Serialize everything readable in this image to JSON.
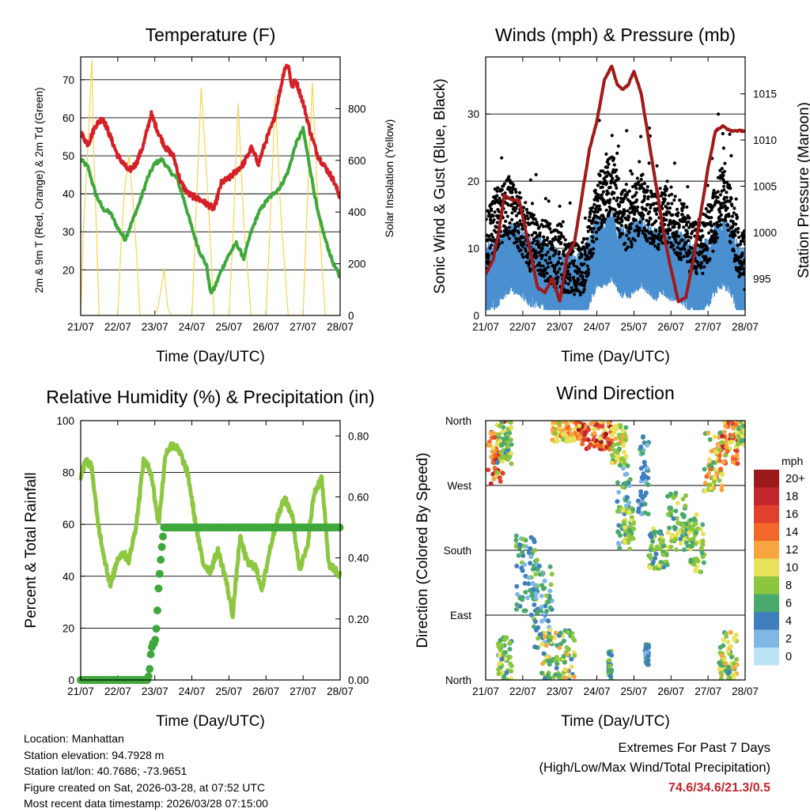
{
  "chart_data": [
    {
      "id": "temp",
      "type": "line",
      "title": "Temperature (F)",
      "xlabel": "Time (Day/UTC)",
      "ylabel": "2m & 9m T (Red, Orange) & 2m Td (Green)",
      "ylabel_right": "Solar Insolation (Yellow)",
      "x_ticks": [
        "21/07",
        "22/07",
        "23/07",
        "24/07",
        "25/07",
        "26/07",
        "27/07",
        "28/07"
      ],
      "xlim": [
        0,
        7
      ],
      "ylim": [
        8,
        76
      ],
      "yticks": [
        20,
        30,
        40,
        50,
        60,
        70
      ],
      "ylim_right": [
        0,
        1000
      ],
      "yticks_right": [
        0,
        200,
        400,
        600,
        800
      ],
      "grid": true,
      "series": [
        {
          "name": "2m T",
          "color": "#d62027",
          "axis": "left",
          "x": [
            0,
            0.2,
            0.4,
            0.6,
            0.8,
            1.0,
            1.3,
            1.5,
            1.7,
            1.9,
            2.1,
            2.3,
            2.5,
            2.7,
            2.9,
            3.1,
            3.3,
            3.6,
            3.8,
            4.0,
            4.2,
            4.4,
            4.6,
            4.8,
            5.0,
            5.2,
            5.4,
            5.5,
            5.6,
            5.7,
            5.8,
            6.0,
            6.2,
            6.4,
            6.6,
            6.8,
            7.0
          ],
          "y": [
            56,
            53,
            58,
            60,
            55,
            50,
            46,
            48,
            53,
            61,
            56,
            52,
            50,
            43,
            40,
            39,
            38,
            36,
            43,
            44,
            46,
            48,
            52,
            48,
            54,
            59,
            68,
            73,
            74,
            68,
            70,
            64,
            56,
            50,
            47,
            44,
            39
          ]
        },
        {
          "name": "2m Td",
          "color": "#3ea83c",
          "axis": "left",
          "x": [
            0,
            0.2,
            0.4,
            0.6,
            0.8,
            1.0,
            1.2,
            1.4,
            1.6,
            1.8,
            2.0,
            2.2,
            2.4,
            2.6,
            2.8,
            3.0,
            3.2,
            3.4,
            3.5,
            3.6,
            3.8,
            4.0,
            4.2,
            4.4,
            4.6,
            4.8,
            5.0,
            5.2,
            5.4,
            5.6,
            5.8,
            6.0,
            6.2,
            6.4,
            6.6,
            6.8,
            7.0
          ],
          "y": [
            49,
            47,
            40,
            36,
            35,
            31,
            28,
            33,
            38,
            44,
            48,
            49,
            46,
            44,
            38,
            31,
            25,
            21,
            14,
            15,
            20,
            24,
            27,
            23,
            30,
            35,
            38,
            40,
            42,
            46,
            53,
            57,
            46,
            35,
            28,
            22,
            18
          ]
        },
        {
          "name": "Solar Insolation",
          "color": "#f7d54e",
          "axis": "right",
          "x": [
            0,
            0.08,
            0.18,
            0.3,
            0.34,
            0.42,
            0.5,
            0.7,
            1.0,
            1.08,
            1.18,
            1.3,
            1.45,
            1.6,
            2.0,
            2.1,
            2.25,
            2.35,
            2.45,
            2.6,
            3.0,
            3.1,
            3.25,
            3.45,
            3.6,
            4.0,
            4.1,
            4.25,
            4.4,
            4.6,
            5.0,
            5.1,
            5.25,
            5.4,
            5.6,
            6.0,
            6.1,
            6.25,
            6.4,
            6.6,
            7.0
          ],
          "y": [
            0,
            350,
            600,
            990,
            700,
            350,
            0,
            0,
            0,
            250,
            480,
            620,
            380,
            0,
            0,
            40,
            180,
            30,
            0,
            0,
            0,
            360,
            880,
            420,
            0,
            0,
            270,
            820,
            360,
            0,
            0,
            320,
            850,
            390,
            0,
            0,
            380,
            900,
            430,
            0,
            0
          ]
        }
      ]
    },
    {
      "id": "wind",
      "type": "scatter",
      "title": "Winds (mph) & Pressure (mb)",
      "xlabel": "Time (Day/UTC)",
      "ylabel": "Sonic Wind & Gust (Blue, Black)",
      "ylabel_right": "Station Pressure (Maroon)",
      "x_ticks": [
        "21/07",
        "22/07",
        "23/07",
        "24/07",
        "25/07",
        "26/07",
        "27/07",
        "28/07"
      ],
      "xlim": [
        0,
        7
      ],
      "ylim": [
        0,
        38.5
      ],
      "yticks": [
        0,
        10,
        20,
        30
      ],
      "ylim_right": [
        991,
        1019
      ],
      "yticks_right": [
        995,
        1000,
        1005,
        1010,
        1015
      ],
      "grid": true,
      "series": [
        {
          "name": "Wind (mean level)",
          "color": "#4a90d0",
          "axis": "left",
          "x": [
            0,
            0.3,
            0.6,
            0.9,
            1.2,
            1.5,
            1.8,
            2.0,
            2.2,
            2.4,
            2.6,
            2.8,
            3.0,
            3.2,
            3.4,
            3.6,
            3.8,
            4.0,
            4.2,
            4.4,
            4.6,
            4.8,
            5.0,
            5.2,
            5.4,
            5.6,
            5.8,
            6.0,
            6.2,
            6.4,
            6.6,
            6.8,
            7.0
          ],
          "y": [
            5,
            6,
            8,
            8,
            6,
            6,
            5,
            4,
            4,
            3,
            4,
            6,
            9,
            9,
            10,
            8,
            7,
            8,
            9,
            8,
            7,
            8,
            7,
            7,
            6,
            5,
            5,
            6,
            8,
            9,
            8,
            5,
            4
          ]
        },
        {
          "name": "Gust (mean level)",
          "color": "#000000",
          "axis": "left",
          "x": [
            0,
            0.3,
            0.6,
            0.9,
            1.2,
            1.5,
            1.8,
            2.0,
            2.2,
            2.4,
            2.6,
            2.8,
            3.0,
            3.2,
            3.4,
            3.6,
            3.8,
            4.0,
            4.2,
            4.4,
            4.6,
            4.8,
            5.0,
            5.2,
            5.4,
            5.6,
            5.8,
            6.0,
            6.2,
            6.4,
            6.6,
            6.8,
            7.0
          ],
          "y": [
            11,
            14,
            16,
            14,
            11,
            10,
            9,
            8,
            7,
            6,
            7,
            11,
            16,
            18,
            20,
            16,
            14,
            15,
            17,
            15,
            14,
            15,
            14,
            13,
            12,
            10,
            10,
            12,
            15,
            19,
            15,
            10,
            8
          ]
        },
        {
          "name": "Station Pressure",
          "color": "#a11a1a",
          "axis": "right",
          "x": [
            0,
            0.2,
            0.35,
            0.5,
            0.7,
            0.9,
            1.2,
            1.4,
            1.6,
            1.8,
            2.0,
            2.2,
            2.4,
            2.6,
            2.8,
            3.0,
            3.2,
            3.4,
            3.55,
            3.7,
            3.85,
            4.0,
            4.2,
            4.4,
            4.6,
            4.8,
            5.0,
            5.2,
            5.4,
            5.6,
            5.8,
            6.0,
            6.2,
            6.4,
            6.6,
            6.8,
            7.0
          ],
          "y": [
            995.5,
            997,
            1000,
            1004,
            1003.5,
            1003.5,
            998,
            994,
            993.5,
            995,
            992.5,
            997.5,
            999,
            1004,
            1009,
            1012,
            1016.5,
            1018,
            1016,
            1015.5,
            1016,
            1017.5,
            1015,
            1010,
            1005,
            1000,
            996,
            992.5,
            993,
            997,
            1002,
            1007,
            1011,
            1011.5,
            1011,
            1011,
            1011
          ]
        }
      ]
    },
    {
      "id": "rh",
      "type": "line",
      "title": "Relative Humidity (%) & Precipitation (in)",
      "xlabel": "Time (Day/UTC)",
      "ylabel": "Percent & Total Rainfall",
      "x_ticks": [
        "21/07",
        "22/07",
        "23/07",
        "24/07",
        "25/07",
        "26/07",
        "27/07",
        "28/07"
      ],
      "xlim": [
        0,
        7
      ],
      "ylim": [
        0,
        100
      ],
      "yticks": [
        0,
        20,
        40,
        60,
        80,
        100
      ],
      "ylim_right": [
        0,
        0.85
      ],
      "yticks_right": [
        "0.00",
        "0.20",
        "0.40",
        "0.60",
        "0.80"
      ],
      "grid": true,
      "series": [
        {
          "name": "Relative Humidity",
          "color": "#8dc63f",
          "axis": "left",
          "x": [
            0,
            0.15,
            0.3,
            0.45,
            0.6,
            0.8,
            1.0,
            1.15,
            1.3,
            1.5,
            1.7,
            1.9,
            2.1,
            2.3,
            2.5,
            2.7,
            2.9,
            3.1,
            3.3,
            3.5,
            3.7,
            3.9,
            4.1,
            4.3,
            4.5,
            4.7,
            4.9,
            5.1,
            5.3,
            5.5,
            5.7,
            5.9,
            6.1,
            6.3,
            6.5,
            6.7,
            6.9,
            7.0
          ],
          "y": [
            78,
            85,
            82,
            62,
            50,
            36,
            47,
            49,
            46,
            60,
            85,
            80,
            60,
            88,
            91,
            87,
            79,
            60,
            45,
            42,
            50,
            40,
            25,
            55,
            45,
            44,
            35,
            50,
            62,
            70,
            64,
            43,
            50,
            72,
            78,
            44,
            42,
            40
          ]
        },
        {
          "name": "Total Rainfall",
          "color": "#3ea83c",
          "axis": "right",
          "x": [
            0,
            1.8,
            1.85,
            1.9,
            1.95,
            2.0,
            2.05,
            2.1,
            2.15,
            2.2,
            2.25,
            2.3,
            7.0
          ],
          "y": [
            0,
            0,
            0.02,
            0.1,
            0.12,
            0.12,
            0.18,
            0.3,
            0.38,
            0.45,
            0.5,
            0.5,
            0.5
          ]
        }
      ]
    },
    {
      "id": "wdir",
      "type": "scatter",
      "title": "Wind Direction",
      "xlabel": "Time (Day/UTC)",
      "ylabel": "Direction (Colored By Speed)",
      "x_ticks": [
        "21/07",
        "22/07",
        "23/07",
        "24/07",
        "25/07",
        "26/07",
        "27/07",
        "28/07"
      ],
      "xlim": [
        0,
        7
      ],
      "ylim": [
        0,
        360
      ],
      "y_ticks": [
        "North",
        "East",
        "South",
        "West",
        "North"
      ],
      "grid": true,
      "clusters": [
        {
          "x": [
            0.05,
            0.5
          ],
          "dir": [
            270,
            360
          ],
          "speed": [
            8,
            18
          ]
        },
        {
          "x": [
            0.3,
            0.7
          ],
          "dir": [
            300,
            360
          ],
          "speed": [
            4,
            10
          ]
        },
        {
          "x": [
            0.8,
            1.4
          ],
          "dir": [
            90,
            200
          ],
          "speed": [
            2,
            8
          ]
        },
        {
          "x": [
            1.3,
            1.8
          ],
          "dir": [
            40,
            160
          ],
          "speed": [
            2,
            8
          ]
        },
        {
          "x": [
            0.3,
            0.7
          ],
          "dir": [
            0,
            60
          ],
          "speed": [
            4,
            10
          ]
        },
        {
          "x": [
            1.5,
            2.4
          ],
          "dir": [
            0,
            70
          ],
          "speed": [
            4,
            12
          ]
        },
        {
          "x": [
            1.8,
            2.7
          ],
          "dir": [
            330,
            360
          ],
          "speed": [
            8,
            14
          ]
        },
        {
          "x": [
            2.5,
            3.4
          ],
          "dir": [
            320,
            360
          ],
          "speed": [
            10,
            20
          ]
        },
        {
          "x": [
            3.4,
            3.8
          ],
          "dir": [
            300,
            355
          ],
          "speed": [
            6,
            12
          ]
        },
        {
          "x": [
            3.55,
            3.9
          ],
          "dir": [
            180,
            300
          ],
          "speed": [
            2,
            8
          ]
        },
        {
          "x": [
            3.7,
            4.0
          ],
          "dir": [
            190,
            240
          ],
          "speed": [
            6,
            10
          ]
        },
        {
          "x": [
            4.1,
            4.4
          ],
          "dir": [
            230,
            340
          ],
          "speed": [
            2,
            6
          ]
        },
        {
          "x": [
            4.4,
            4.9
          ],
          "dir": [
            150,
            210
          ],
          "speed": [
            4,
            10
          ]
        },
        {
          "x": [
            4.9,
            5.5
          ],
          "dir": [
            180,
            260
          ],
          "speed": [
            4,
            10
          ]
        },
        {
          "x": [
            5.5,
            5.9
          ],
          "dir": [
            150,
            230
          ],
          "speed": [
            6,
            10
          ]
        },
        {
          "x": [
            5.9,
            6.4
          ],
          "dir": [
            260,
            350
          ],
          "speed": [
            6,
            14
          ]
        },
        {
          "x": [
            6.3,
            6.8
          ],
          "dir": [
            300,
            360
          ],
          "speed": [
            8,
            18
          ]
        },
        {
          "x": [
            6.8,
            7.0
          ],
          "dir": [
            320,
            360
          ],
          "speed": [
            6,
            10
          ]
        },
        {
          "x": [
            6.3,
            6.8
          ],
          "dir": [
            0,
            70
          ],
          "speed": [
            4,
            12
          ]
        },
        {
          "x": [
            3.3,
            3.4
          ],
          "dir": [
            0,
            40
          ],
          "speed": [
            4,
            8
          ]
        },
        {
          "x": [
            4.3,
            4.4
          ],
          "dir": [
            20,
            50
          ],
          "speed": [
            2,
            6
          ]
        }
      ],
      "colorbar": {
        "title": "mph",
        "labels": [
          "20+",
          "18",
          "16",
          "14",
          "12",
          "10",
          "8",
          "6",
          "4",
          "2",
          "0"
        ],
        "colors": [
          "#9b1a1a",
          "#c1272d",
          "#e0412f",
          "#f2672a",
          "#f7a540",
          "#e8e25a",
          "#8cc63f",
          "#4aa96c",
          "#3f7fbd",
          "#7fb9e3",
          "#bde3f7"
        ]
      }
    }
  ],
  "info": {
    "location": "Location: Manhattan",
    "elevation": "Station elevation: 94.7928 m",
    "latlon": "Station lat/lon: 40.7686; -73.9651",
    "created": "Figure created on Sat, 2026-03-28, at 07:52 UTC",
    "recent": "Most recent data timestamp: 2026/03/28 07:15:00"
  },
  "extremes": {
    "line1": "Extremes For Past 7 Days",
    "line2": "(High/Low/Max Wind/Total Precipitation)",
    "values": "74.6/34.6/21.3/0.5"
  }
}
